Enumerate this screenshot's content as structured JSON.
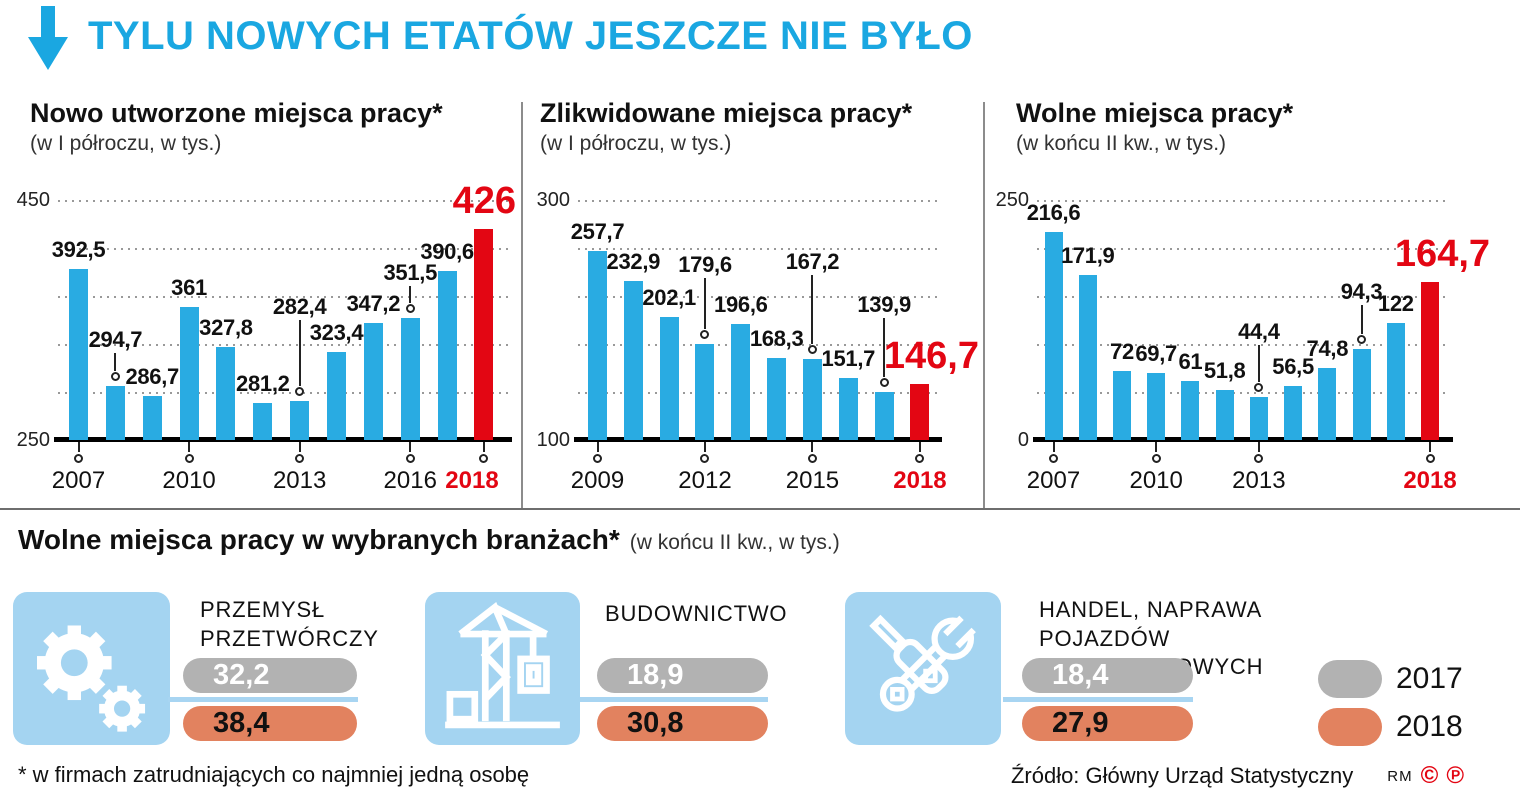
{
  "header": {
    "title": "TYLU NOWYCH ETATÓW JESZCZE NIE BYŁO",
    "accent_color": "#1AA7E1"
  },
  "colors": {
    "bar_blue": "#29ABE2",
    "highlight_red": "#E30613",
    "icon_box_blue": "#A4D4F1",
    "pill_gray": "#B2B2B2",
    "pill_orange": "#E2825F"
  },
  "chart_data": [
    {
      "type": "bar",
      "title": "Nowo utworzone miejsca pracy*",
      "subtitle": "(w I półroczu, w tys.)",
      "ylim": [
        250,
        450
      ],
      "axis_top_label": "450",
      "axis_bottom_label": "250",
      "grid": "dotted-horizontal",
      "years": [
        2007,
        2008,
        2009,
        2010,
        2011,
        2012,
        2013,
        2014,
        2015,
        2016,
        2017,
        2018
      ],
      "values": [
        392.5,
        294.7,
        286.7,
        361,
        327.8,
        281.2,
        282.4,
        323.4,
        347.2,
        351.5,
        390.6,
        426
      ],
      "labels": [
        "392,5",
        "294,7",
        "286,7",
        "361",
        "327,8",
        "281,2",
        "282,4",
        "323,4",
        "347,2",
        "351,5",
        "390,6",
        "426"
      ],
      "tick_years": [
        2007,
        2010,
        2013,
        2016,
        2018
      ],
      "highlight_year": 2018,
      "label_lifts": {
        "1": 27,
        "6": 75,
        "9": 26
      }
    },
    {
      "type": "bar",
      "title": "Zlikwidowane miejsca pracy*",
      "subtitle": "(w I półroczu, w tys.)",
      "ylim": [
        100,
        300
      ],
      "axis_top_label": "300",
      "axis_bottom_label": "100",
      "grid": "dotted-horizontal",
      "years": [
        2009,
        2010,
        2011,
        2012,
        2013,
        2014,
        2015,
        2016,
        2017,
        2018
      ],
      "values": [
        257.7,
        232.9,
        202.1,
        179.6,
        196.6,
        168.3,
        167.2,
        151.7,
        139.9,
        146.7
      ],
      "labels": [
        "257,7",
        "232,9",
        "202,1",
        "179,6",
        "196,6",
        "168,3",
        "167,2",
        "151,7",
        "139,9",
        "146,7"
      ],
      "tick_years": [
        2009,
        2012,
        2015,
        2018
      ],
      "highlight_year": 2018,
      "label_lifts": {
        "3": 60,
        "6": 78,
        "8": 68
      }
    },
    {
      "type": "bar",
      "title": "Wolne miejsca pracy*",
      "subtitle": "(w końcu II kw., w tys.)",
      "ylim": [
        0,
        250
      ],
      "axis_top_label": "250",
      "axis_bottom_label": "0",
      "grid": "dotted-horizontal",
      "years": [
        2007,
        2008,
        2009,
        2010,
        2011,
        2012,
        2013,
        2014,
        2015,
        2016,
        2017,
        2018
      ],
      "values": [
        216.6,
        171.9,
        72,
        69.7,
        61,
        51.8,
        44.4,
        56.5,
        74.8,
        94.3,
        122,
        164.7
      ],
      "labels": [
        "216,6",
        "171,9",
        "72",
        "69,7",
        "61",
        "51,8",
        "44,4",
        "56,5",
        "74,8",
        "94,3",
        "122",
        "164,7"
      ],
      "tick_years": [
        2007,
        2010,
        2013,
        2018
      ],
      "highlight_year": 2018,
      "label_lifts": {
        "6": 46,
        "9": 38
      }
    },
    {
      "type": "bar",
      "title": "Wolne miejsca pracy w wybranych branżach*",
      "subtitle": "(w końcu II kw., w tys.)",
      "categories": [
        "PRZEMYSŁ PRZETWÓRCZY",
        "BUDOWNICTWO",
        "HANDEL, NAPRAWA POJAZDÓW SAMOCHODOWYCH"
      ],
      "icons": [
        "gears-icon",
        "construction-crane-icon",
        "tools-icon"
      ],
      "series": [
        {
          "name": "2017",
          "values": [
            32.2,
            18.9,
            18.4
          ],
          "labels": [
            "32,2",
            "18,9",
            "18,4"
          ],
          "color": "#B2B2B2"
        },
        {
          "name": "2018",
          "values": [
            38.4,
            30.8,
            27.9
          ],
          "labels": [
            "38,4",
            "30,8",
            "27,9"
          ],
          "color": "#E2825F"
        }
      ],
      "legend_position": "right"
    }
  ],
  "legend": {
    "items": [
      {
        "label": "2017",
        "color": "#B2B2B2"
      },
      {
        "label": "2018",
        "color": "#E2825F"
      }
    ]
  },
  "footer": {
    "footnote": "* w firmach zatrudniających co najmniej jedną osobę",
    "source": "Źródło: Główny Urząd Statystyczny",
    "credit": "RM",
    "rights_marks": [
      "©",
      "℗"
    ]
  }
}
